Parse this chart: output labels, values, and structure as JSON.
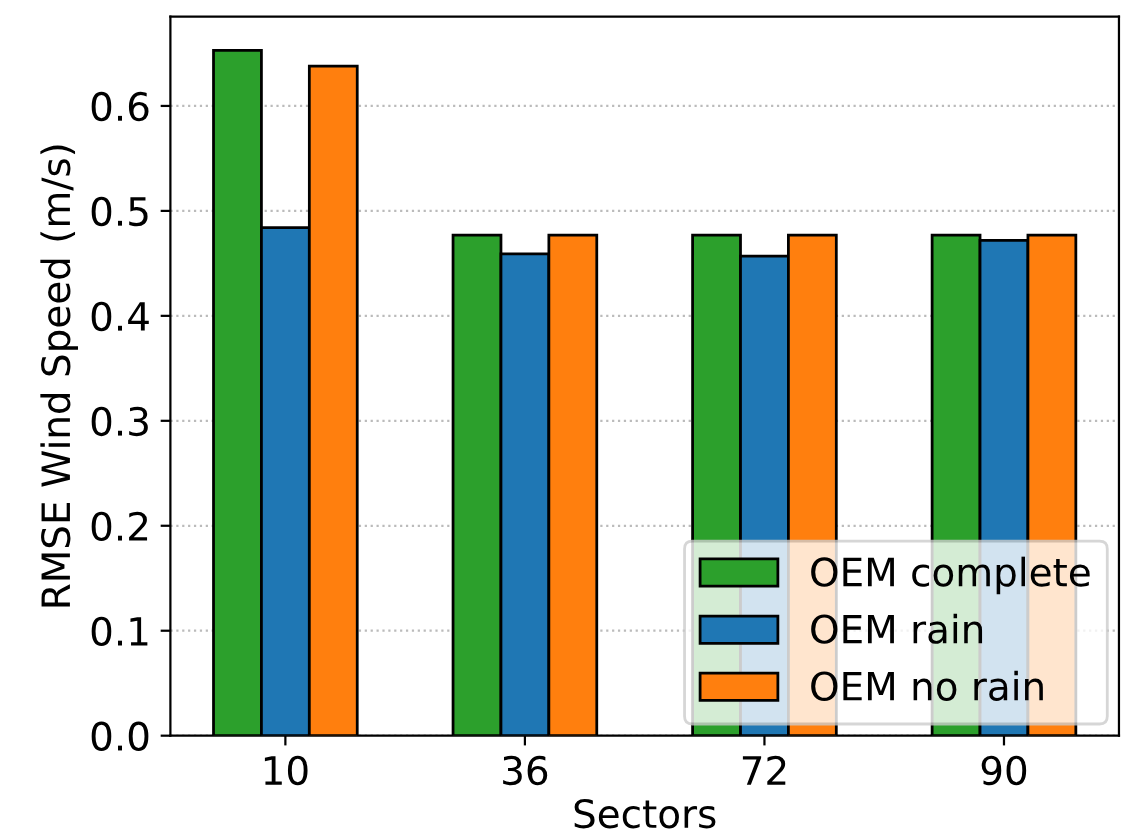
{
  "chart_data": {
    "type": "bar",
    "xlabel": "Sectors",
    "ylabel": "RMSE Wind Speed (m/s)",
    "categories": [
      "10",
      "36",
      "72",
      "90"
    ],
    "series": [
      {
        "name": "OEM complete",
        "color": "#2ca02c",
        "values": [
          0.653,
          0.477,
          0.477,
          0.477
        ]
      },
      {
        "name": "OEM rain",
        "color": "#1f77b4",
        "values": [
          0.484,
          0.459,
          0.457,
          0.472
        ]
      },
      {
        "name": "OEM no rain",
        "color": "#ff7f0e",
        "values": [
          0.638,
          0.477,
          0.477,
          0.477
        ]
      }
    ],
    "ylim": [
      0,
      0.685
    ],
    "yticks": [
      {
        "value": 0,
        "label": "0.0"
      },
      0.1,
      0.2,
      0.3,
      0.4,
      0.5,
      0.6
    ],
    "grid": "y",
    "legend": "bottom right"
  }
}
